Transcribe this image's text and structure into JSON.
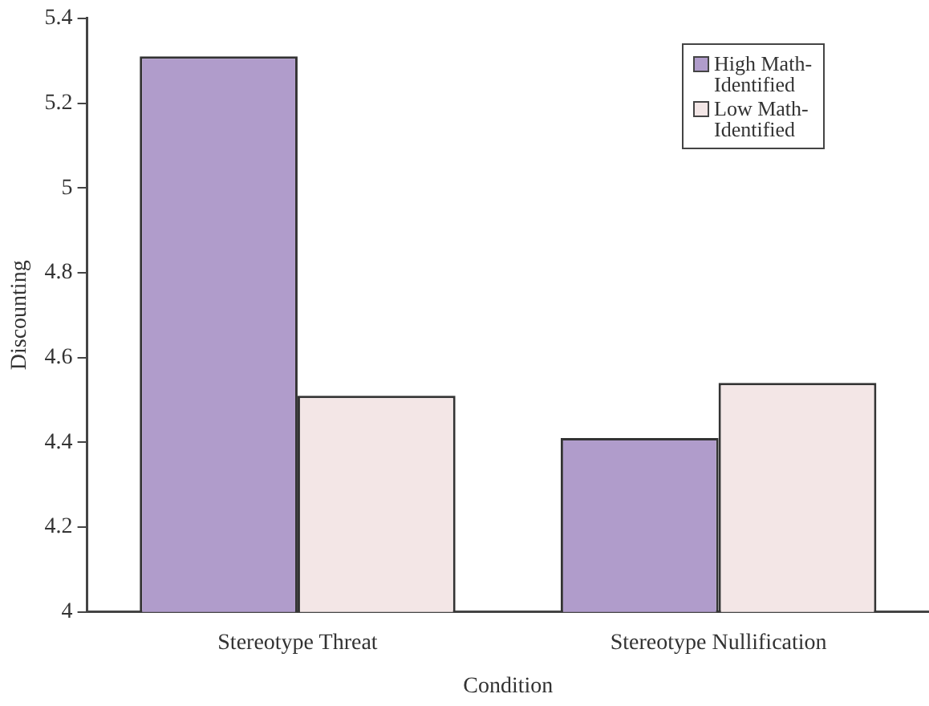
{
  "chart_data": {
    "type": "bar",
    "xlabel": "Condition",
    "ylabel": "Discounting",
    "categories": [
      "Stereotype Threat",
      "Stereotype Nullification"
    ],
    "series": [
      {
        "name": "High Math-Identified",
        "color": "#b09ccb",
        "values": [
          5.31,
          4.41
        ]
      },
      {
        "name": "Low Math-Identified",
        "color": "#f3e6e6",
        "values": [
          4.51,
          4.54
        ]
      }
    ],
    "ylim": [
      4,
      5.4
    ],
    "yticks": [
      4,
      4.2,
      4.4,
      4.6,
      4.8,
      5,
      5.2,
      5.4
    ],
    "grid": false,
    "legend": "top right"
  }
}
